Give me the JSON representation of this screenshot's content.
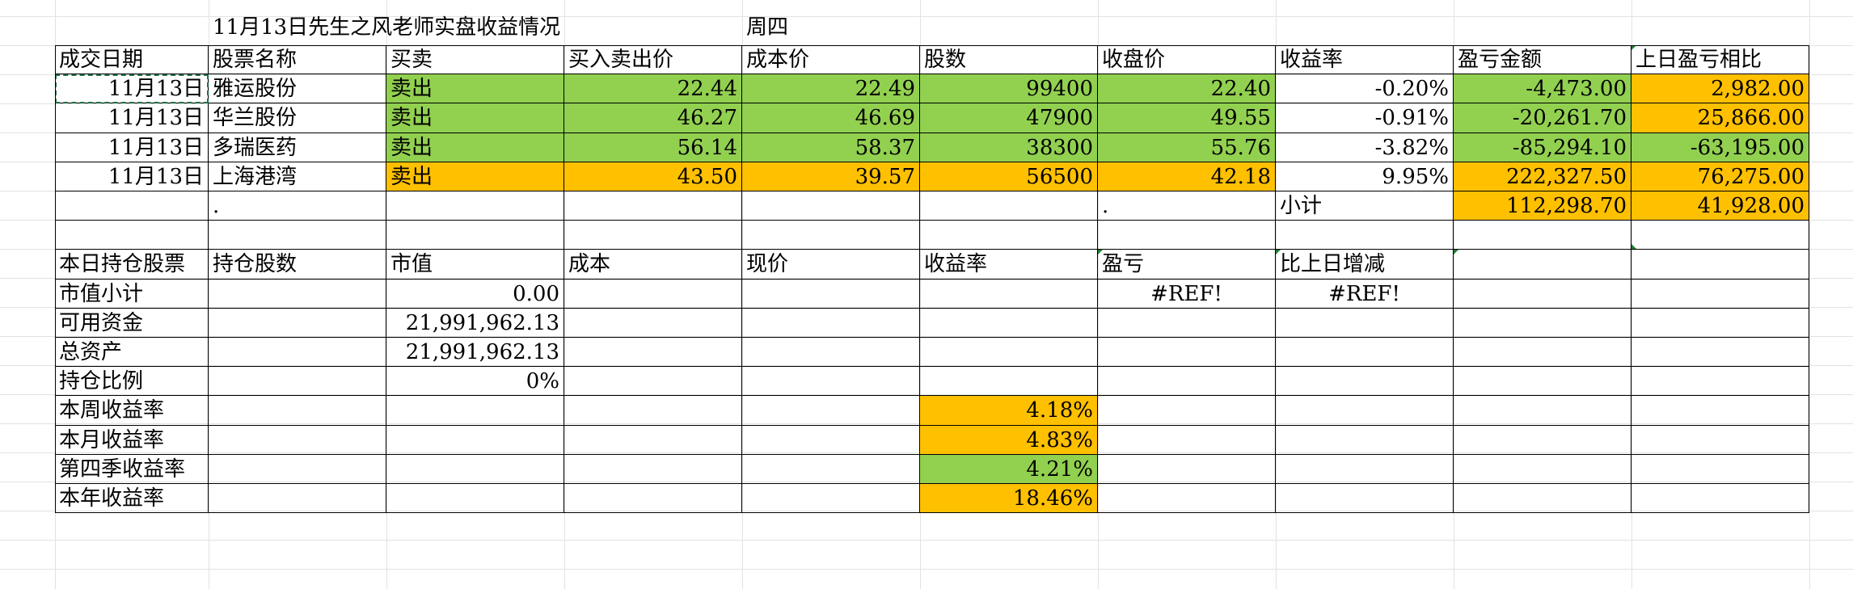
{
  "sheet": {
    "title": "11月13日先生之风老师实盘收益情况",
    "weekday": "周四",
    "trades": {
      "headers": [
        "成交日期",
        "股票名称",
        "买卖",
        "买入卖出价",
        "成本价",
        "股数",
        "收盘价",
        "收益率",
        "盈亏金额",
        "上日盈亏相比"
      ],
      "rows": [
        {
          "date": "11月13日",
          "name": "雅运股份",
          "side": "卖出",
          "price": "22.44",
          "cost": "22.49",
          "shares": "99400",
          "close": "22.40",
          "rate": "-0.20%",
          "pnl": "-4,473.00",
          "prev": "2,982.00",
          "color": "green",
          "prev_color": "orange"
        },
        {
          "date": "11月13日",
          "name": "华兰股份",
          "side": "卖出",
          "price": "46.27",
          "cost": "46.69",
          "shares": "47900",
          "close": "49.55",
          "rate": "-0.91%",
          "pnl": "-20,261.70",
          "prev": "25,866.00",
          "color": "green",
          "prev_color": "orange"
        },
        {
          "date": "11月13日",
          "name": "多瑞医药",
          "side": "卖出",
          "price": "56.14",
          "cost": "58.37",
          "shares": "38300",
          "close": "55.76",
          "rate": "-3.82%",
          "pnl": "-85,294.10",
          "prev": "-63,195.00",
          "color": "green",
          "prev_color": "green"
        },
        {
          "date": "11月13日",
          "name": "上海港湾",
          "side": "卖出",
          "price": "43.50",
          "cost": "39.57",
          "shares": "56500",
          "close": "42.18",
          "rate": "9.95%",
          "pnl": "222,327.50",
          "prev": "76,275.00",
          "color": "orange",
          "prev_color": "orange"
        }
      ],
      "dot_b": ".",
      "dot_g": ".",
      "subtotal_label": "小计",
      "subtotal_pnl": "112,298.70",
      "subtotal_prev": "41,928.00"
    },
    "holdings": {
      "headers": [
        "本日持仓股票",
        "持仓股数",
        "市值",
        "成本",
        "现价",
        "收益率",
        "盈亏",
        "比上日增减"
      ],
      "rows": [
        {
          "label": "市值小计",
          "market": "0.00",
          "pnl": "#REF!",
          "delta": "#REF!"
        },
        {
          "label": "可用资金",
          "market": "21,991,962.13"
        },
        {
          "label": "总资产",
          "market": "21,991,962.13"
        },
        {
          "label": "持仓比例",
          "market": "0%"
        },
        {
          "label": "本周收益率",
          "rate": "4.18%",
          "rate_color": "orange"
        },
        {
          "label": "本月收益率",
          "rate": "4.83%",
          "rate_color": "orange"
        },
        {
          "label": "第四季收益率",
          "rate": "4.21%",
          "rate_color": "green"
        },
        {
          "label": "本年收益率",
          "rate": "18.46%",
          "rate_color": "orange"
        }
      ]
    },
    "colors": {
      "green": "#92d050",
      "orange": "#ffc000"
    }
  }
}
